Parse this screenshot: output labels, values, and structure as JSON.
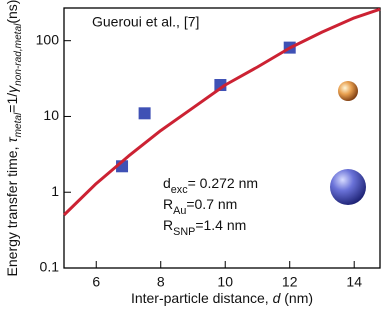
{
  "chart_data": {
    "type": "scatter",
    "title": "Gueroui et al., [7]",
    "xlabel": [
      {
        "t": "Inter-particle distance, "
      },
      {
        "t": "d",
        "i": true
      },
      {
        "t": " (nm)"
      }
    ],
    "ylabel": [
      {
        "t": "Energy transfer time, "
      },
      {
        "t": "τ",
        "i": true
      },
      {
        "t": "metal",
        "i": true,
        "sub": true
      },
      {
        "t": "=1/"
      },
      {
        "t": "γ",
        "i": true
      },
      {
        "t": "non-rad,metal",
        "i": true,
        "sub": true
      },
      {
        "t": "(ns)"
      }
    ],
    "annotations": [
      [
        {
          "t": "d"
        },
        {
          "t": "exc",
          "sub": true
        },
        {
          "t": "= 0.272 nm"
        }
      ],
      [
        {
          "t": "R"
        },
        {
          "t": "Au",
          "sub": true
        },
        {
          "t": "=0.7 nm"
        }
      ],
      [
        {
          "t": "R"
        },
        {
          "t": "SNP",
          "sub": true
        },
        {
          "t": "=1.4 nm"
        }
      ]
    ],
    "xlim": [
      5,
      14.8
    ],
    "xticks": [
      6,
      8,
      10,
      12,
      14
    ],
    "ylim": [
      0.1,
      270
    ],
    "yticks": [
      0.1,
      1,
      10,
      100
    ],
    "ylog": true,
    "series": [
      {
        "kind": "points",
        "color": "#3f51b5",
        "x": [
          6.8,
          7.5,
          9.85,
          12
        ],
        "values": [
          2.2,
          11,
          26,
          81
        ]
      },
      {
        "kind": "curve",
        "color": "#cc2233",
        "x": [
          5,
          6,
          7,
          8,
          9,
          10,
          11,
          12,
          13,
          14,
          14.8
        ],
        "values": [
          0.5,
          1.3,
          3.0,
          6.5,
          13,
          26,
          45,
          80,
          130,
          200,
          260
        ]
      }
    ]
  }
}
